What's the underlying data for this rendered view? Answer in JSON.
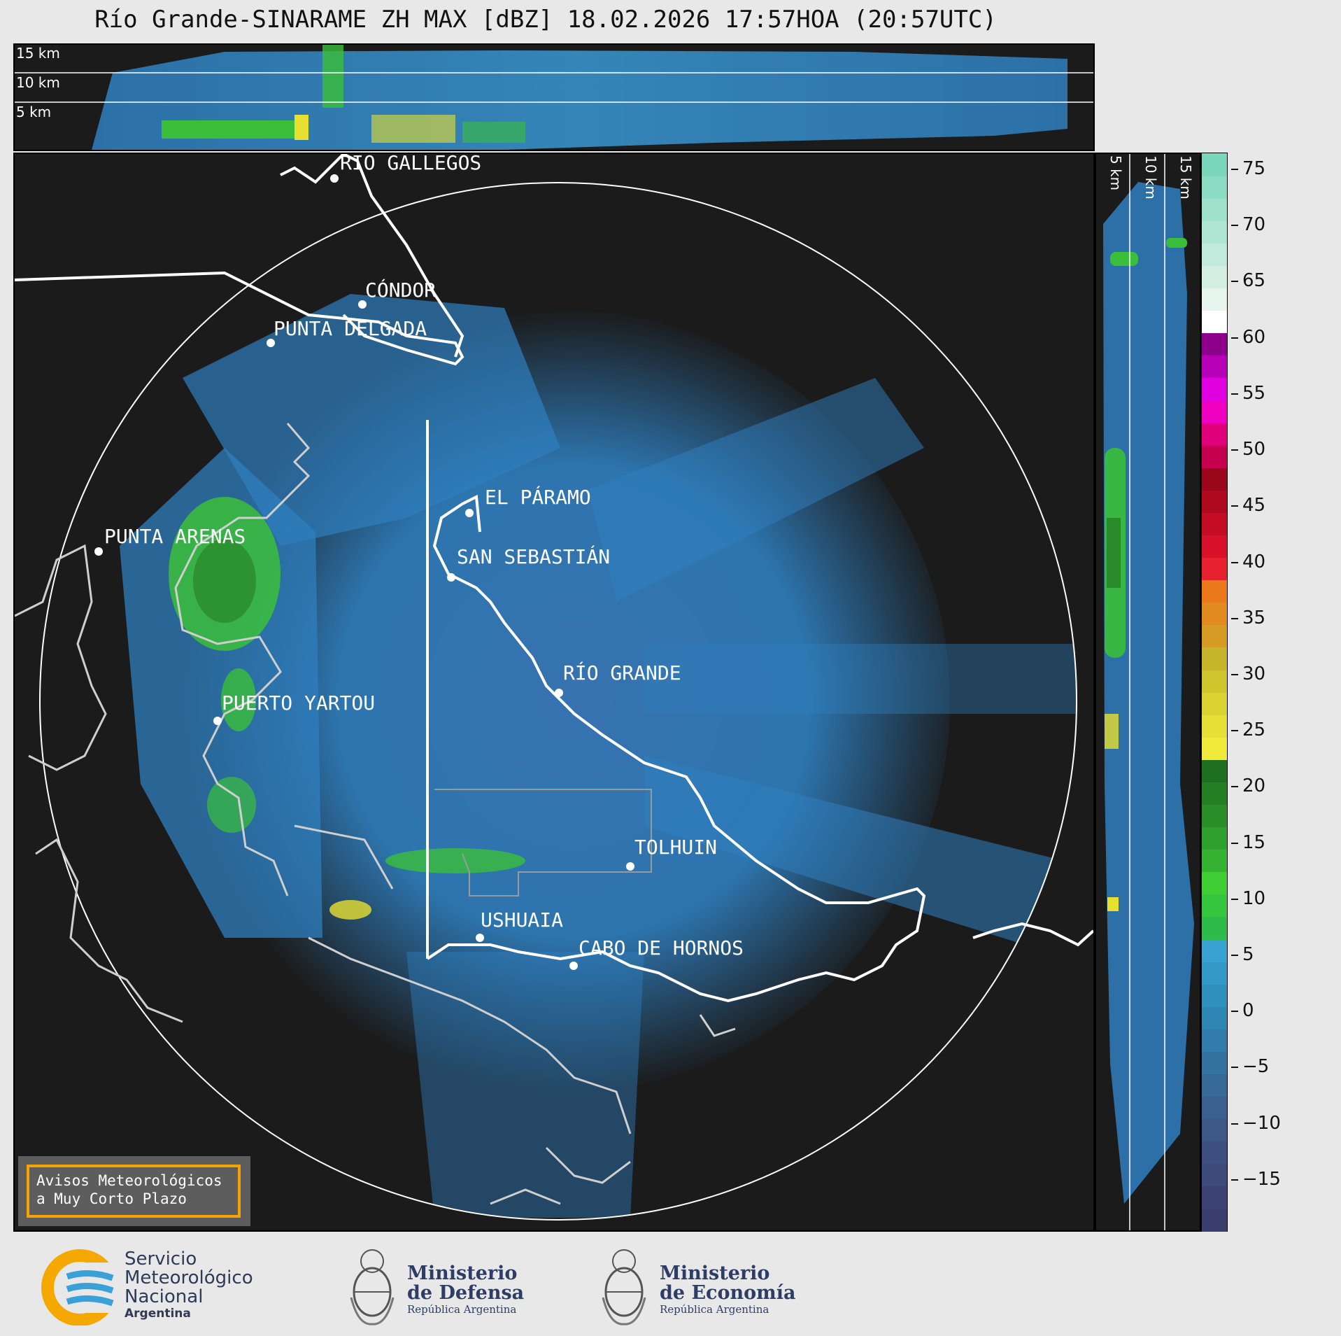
{
  "title": "Río Grande-SINARAME ZH MAX [dBZ] 18.02.2026 17:57HOA (20:57UTC)",
  "top_panel": {
    "altitude_labels": [
      "15 km",
      "10 km",
      "5 km"
    ]
  },
  "side_panel": {
    "altitude_labels": [
      "5 km",
      "10 km",
      "15 km"
    ]
  },
  "colorbar": {
    "unit": "dBZ",
    "ticks": [
      "75",
      "70",
      "65",
      "60",
      "55",
      "50",
      "45",
      "40",
      "35",
      "30",
      "25",
      "20",
      "15",
      "10",
      "5",
      "0",
      "−5",
      "−10",
      "−15"
    ],
    "range": [
      -19.5,
      76.5
    ]
  },
  "cities": [
    {
      "name": "RÍO GALLEGOS"
    },
    {
      "name": "CÓNDOR"
    },
    {
      "name": "PUNTA DELGADA"
    },
    {
      "name": "EL PÁRAMO"
    },
    {
      "name": "PUNTA ARENAS"
    },
    {
      "name": "SAN SEBASTIÁN"
    },
    {
      "name": "RÍO GRANDE"
    },
    {
      "name": "PUERTO YARTOU"
    },
    {
      "name": "TOLHUIN"
    },
    {
      "name": "USHUAIA"
    },
    {
      "name": "CABO DE HORNOS"
    }
  ],
  "warning": {
    "line1": "Avisos Meteorológicos",
    "line2": "a Muy Corto Plazo"
  },
  "footer": {
    "smn": {
      "line1": "Servicio",
      "line2": "Meteorológico",
      "line3": "Nacional",
      "line4": "Argentina"
    },
    "defensa": {
      "line1": "Ministerio",
      "line2": "de Defensa",
      "line3": "República Argentina"
    },
    "economia": {
      "line1": "Ministerio",
      "line2": "de Economía",
      "line3": "República Argentina"
    }
  },
  "colors": {
    "background": "#1b1b1b",
    "echo_blue": "#2f7fbf",
    "echo_light_blue": "#3a98d4",
    "echo_green": "#3bbf3a",
    "echo_dark_green": "#2a8a2a",
    "echo_yellow": "#e8e030",
    "coast_line": "#cfcfcf",
    "border_line": "#ffffff",
    "warning_border": "#f5a300"
  }
}
